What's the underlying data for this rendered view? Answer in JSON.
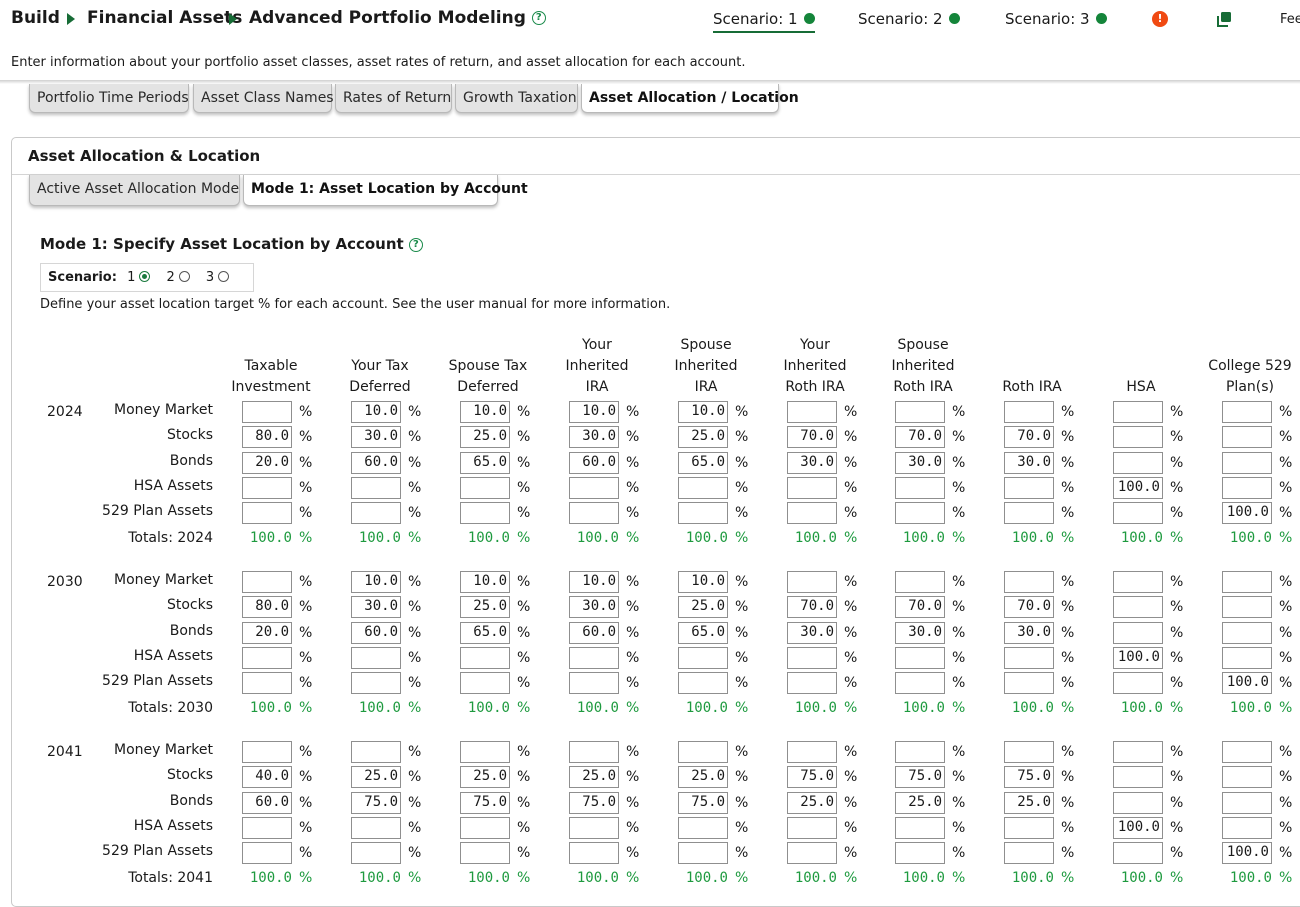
{
  "breadcrumb": {
    "items": [
      "Build",
      "Financial Assets",
      "Advanced Portfolio Modeling"
    ],
    "help_glyph": "?"
  },
  "scenarios": {
    "items": [
      {
        "label": "Scenario: 1",
        "status_color": "#14853a"
      },
      {
        "label": "Scenario: 2",
        "status_color": "#14853a"
      },
      {
        "label": "Scenario: 3",
        "status_color": "#14853a"
      }
    ],
    "active_index": 0
  },
  "header": {
    "alert_glyph": "!",
    "copy_icon": "copy-icon",
    "fee_label": "Fee"
  },
  "intro_text": "Enter information about your portfolio asset classes, asset rates of return, and asset allocation for each account.",
  "tabs": [
    {
      "label": "Portfolio Time Periods"
    },
    {
      "label": "Asset Class Names"
    },
    {
      "label": "Rates of Return"
    },
    {
      "label": "Growth Taxation"
    },
    {
      "label": "Asset Allocation / Location"
    }
  ],
  "panel": {
    "title": "Asset Allocation & Location",
    "subtabs": [
      {
        "label": "Active Asset Allocation Mode"
      },
      {
        "label": "Mode 1: Asset Location by Account"
      }
    ]
  },
  "mode": {
    "title": "Mode 1: Specify Asset Location by Account",
    "help_glyph": "?",
    "scenario_label": "Scenario:",
    "scenario_options": [
      "1",
      "2",
      "3"
    ],
    "scenario_selected": "1",
    "define_text": "Define your asset location target % for each account. See the user manual for more information."
  },
  "grid": {
    "columns": [
      [
        "Taxable",
        "Investment"
      ],
      [
        "Your Tax",
        "Deferred"
      ],
      [
        "Spouse Tax",
        "Deferred"
      ],
      [
        "Your",
        "Inherited",
        "IRA"
      ],
      [
        "Spouse",
        "Inherited",
        "IRA"
      ],
      [
        "Your",
        "Inherited",
        "Roth IRA"
      ],
      [
        "Spouse",
        "Inherited",
        "Roth IRA"
      ],
      [
        "Roth IRA"
      ],
      [
        "HSA"
      ],
      [
        "College 529",
        "Plan(s)"
      ]
    ],
    "percent_sign": "%",
    "periods": [
      {
        "year": "2024",
        "total_label": "Totals: 2024",
        "rows": [
          {
            "label": "Money Market",
            "values": [
              "",
              "10.0",
              "10.0",
              "10.0",
              "10.0",
              "",
              "",
              "",
              "",
              ""
            ]
          },
          {
            "label": "Stocks",
            "values": [
              "80.0",
              "30.0",
              "25.0",
              "30.0",
              "25.0",
              "70.0",
              "70.0",
              "70.0",
              "",
              ""
            ]
          },
          {
            "label": "Bonds",
            "values": [
              "20.0",
              "60.0",
              "65.0",
              "60.0",
              "65.0",
              "30.0",
              "30.0",
              "30.0",
              "",
              ""
            ]
          },
          {
            "label": "HSA Assets",
            "values": [
              "",
              "",
              "",
              "",
              "",
              "",
              "",
              "",
              "100.0",
              ""
            ]
          },
          {
            "label": "529 Plan Assets",
            "values": [
              "",
              "",
              "",
              "",
              "",
              "",
              "",
              "",
              "",
              "100.0"
            ]
          }
        ],
        "totals": [
          "100.0",
          "100.0",
          "100.0",
          "100.0",
          "100.0",
          "100.0",
          "100.0",
          "100.0",
          "100.0",
          "100.0"
        ]
      },
      {
        "year": "2030",
        "total_label": "Totals: 2030",
        "rows": [
          {
            "label": "Money Market",
            "values": [
              "",
              "10.0",
              "10.0",
              "10.0",
              "10.0",
              "",
              "",
              "",
              "",
              ""
            ]
          },
          {
            "label": "Stocks",
            "values": [
              "80.0",
              "30.0",
              "25.0",
              "30.0",
              "25.0",
              "70.0",
              "70.0",
              "70.0",
              "",
              ""
            ]
          },
          {
            "label": "Bonds",
            "values": [
              "20.0",
              "60.0",
              "65.0",
              "60.0",
              "65.0",
              "30.0",
              "30.0",
              "30.0",
              "",
              ""
            ]
          },
          {
            "label": "HSA Assets",
            "values": [
              "",
              "",
              "",
              "",
              "",
              "",
              "",
              "",
              "100.0",
              ""
            ]
          },
          {
            "label": "529 Plan Assets",
            "values": [
              "",
              "",
              "",
              "",
              "",
              "",
              "",
              "",
              "",
              "100.0"
            ]
          }
        ],
        "totals": [
          "100.0",
          "100.0",
          "100.0",
          "100.0",
          "100.0",
          "100.0",
          "100.0",
          "100.0",
          "100.0",
          "100.0"
        ]
      },
      {
        "year": "2041",
        "total_label": "Totals: 2041",
        "rows": [
          {
            "label": "Money Market",
            "values": [
              "",
              "",
              "",
              "",
              "",
              "",
              "",
              "",
              "",
              ""
            ]
          },
          {
            "label": "Stocks",
            "values": [
              "40.0",
              "25.0",
              "25.0",
              "25.0",
              "25.0",
              "75.0",
              "75.0",
              "75.0",
              "",
              ""
            ]
          },
          {
            "label": "Bonds",
            "values": [
              "60.0",
              "75.0",
              "75.0",
              "75.0",
              "75.0",
              "25.0",
              "25.0",
              "25.0",
              "",
              ""
            ]
          },
          {
            "label": "HSA Assets",
            "values": [
              "",
              "",
              "",
              "",
              "",
              "",
              "",
              "",
              "100.0",
              ""
            ]
          },
          {
            "label": "529 Plan Assets",
            "values": [
              "",
              "",
              "",
              "",
              "",
              "",
              "",
              "",
              "",
              "100.0"
            ]
          }
        ],
        "totals": [
          "100.0",
          "100.0",
          "100.0",
          "100.0",
          "100.0",
          "100.0",
          "100.0",
          "100.0",
          "100.0",
          "100.0"
        ]
      }
    ]
  }
}
